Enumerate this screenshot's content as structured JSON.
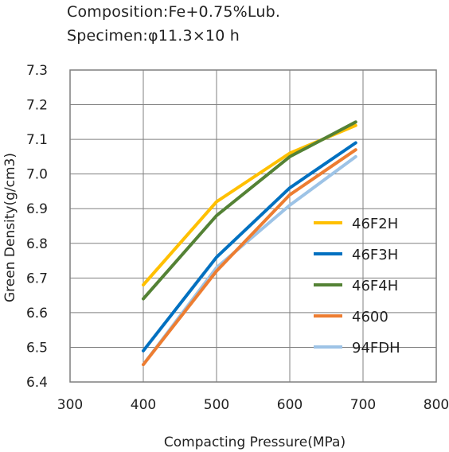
{
  "header": {
    "line1": "Composition:Fe+0.75%Lub.",
    "line2": "Specimen:φ11.3×10 h"
  },
  "chart_data": {
    "type": "line",
    "x": [
      400,
      500,
      600,
      690
    ],
    "xlabel": "Compacting Pressure(MPa)",
    "ylabel": "Green Density(g/cm3)",
    "xlim": [
      300,
      800
    ],
    "ylim": [
      6.4,
      7.3
    ],
    "xticks": [
      "300",
      "400",
      "500",
      "600",
      "700",
      "800"
    ],
    "yticks": [
      "6.4",
      "6.5",
      "6.6",
      "6.7",
      "6.8",
      "6.9",
      "7.0",
      "7.1",
      "7.2",
      "7.3"
    ],
    "grid": true,
    "legend_position": "right",
    "series": [
      {
        "name": "46F2H",
        "color": "#FFC000",
        "values": [
          6.68,
          6.92,
          7.06,
          7.14
        ]
      },
      {
        "name": "46F3H",
        "color": "#0070C0",
        "values": [
          6.49,
          6.76,
          6.96,
          7.09
        ]
      },
      {
        "name": "46F4H",
        "color": "#548235",
        "values": [
          6.64,
          6.88,
          7.05,
          7.15
        ]
      },
      {
        "name": "4600",
        "color": "#ED7D31",
        "values": [
          6.45,
          6.72,
          6.94,
          7.07
        ]
      },
      {
        "name": "94FDH",
        "color": "#9DC3E6",
        "values": [
          6.45,
          6.73,
          6.91,
          7.05
        ]
      }
    ]
  }
}
